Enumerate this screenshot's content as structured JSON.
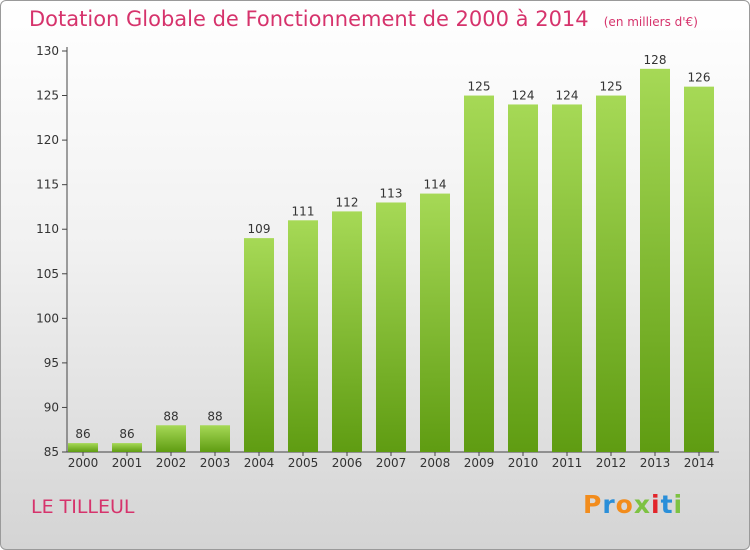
{
  "chart_data": {
    "type": "bar",
    "title": "Dotation Globale de Fonctionnement de 2000 à 2014",
    "unit_note": "(en milliers d'€)",
    "categories": [
      "2000",
      "2001",
      "2002",
      "2003",
      "2004",
      "2005",
      "2006",
      "2007",
      "2008",
      "2009",
      "2010",
      "2011",
      "2012",
      "2013",
      "2014"
    ],
    "values": [
      86,
      86,
      88,
      88,
      109,
      111,
      112,
      113,
      114,
      125,
      124,
      124,
      125,
      128,
      126
    ],
    "yticks": [
      85,
      90,
      95,
      100,
      105,
      110,
      115,
      120,
      125,
      130
    ],
    "ylim": [
      85,
      130
    ],
    "grid": false,
    "bar_color_light": "#a6d956",
    "bar_color_dark": "#5f9c12",
    "label_color": "#333333"
  },
  "footer": {
    "commune": "LE TILLEUL",
    "brand": "Proxiti",
    "brand_colors": [
      "#f28c1c",
      "#2a8fd9",
      "#f28c1c",
      "#7dc242",
      "#e2252b",
      "#2a8fd9",
      "#7dc242"
    ]
  }
}
